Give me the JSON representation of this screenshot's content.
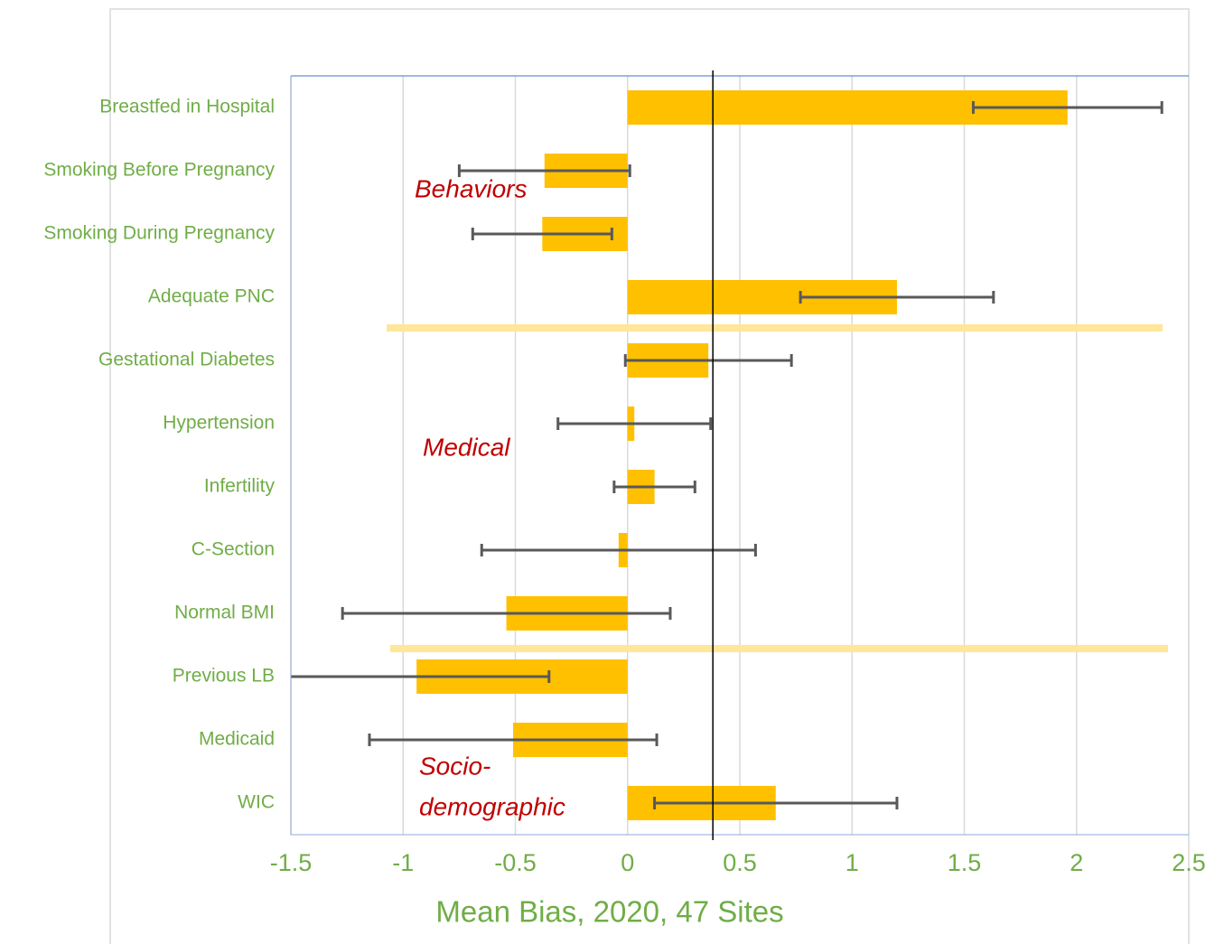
{
  "chart_data": {
    "type": "hbar-error",
    "categories": [
      "Breastfed in Hospital",
      "Smoking Before Pregnancy",
      "Smoking During Pregnancy",
      "Adequate PNC",
      "Gestational Diabetes",
      "Hypertension",
      "Infertility",
      "C-Section",
      "Normal BMI",
      "Previous LB",
      "Medicaid",
      "WIC"
    ],
    "values": [
      1.96,
      -0.37,
      -0.38,
      1.2,
      0.36,
      0.03,
      0.12,
      -0.04,
      -0.54,
      -0.94,
      -0.51,
      0.66
    ],
    "errors": [
      0.42,
      0.38,
      0.31,
      0.43,
      0.37,
      0.34,
      0.18,
      0.61,
      0.73,
      0.59,
      0.64,
      0.54
    ],
    "color": "#ffc000",
    "error_color": "#595959",
    "xlabel": "Mean Bias, 2020, 47 Sites",
    "xlim": [
      -1.5,
      2.5
    ],
    "xticks": [
      -1.5,
      -1,
      -0.5,
      0,
      0.5,
      1,
      1.5,
      2,
      2.5
    ],
    "grid": true,
    "reference_line": 0.38,
    "annotations": [
      "Behaviors",
      "Medical",
      "Socio-",
      "demographic"
    ]
  }
}
